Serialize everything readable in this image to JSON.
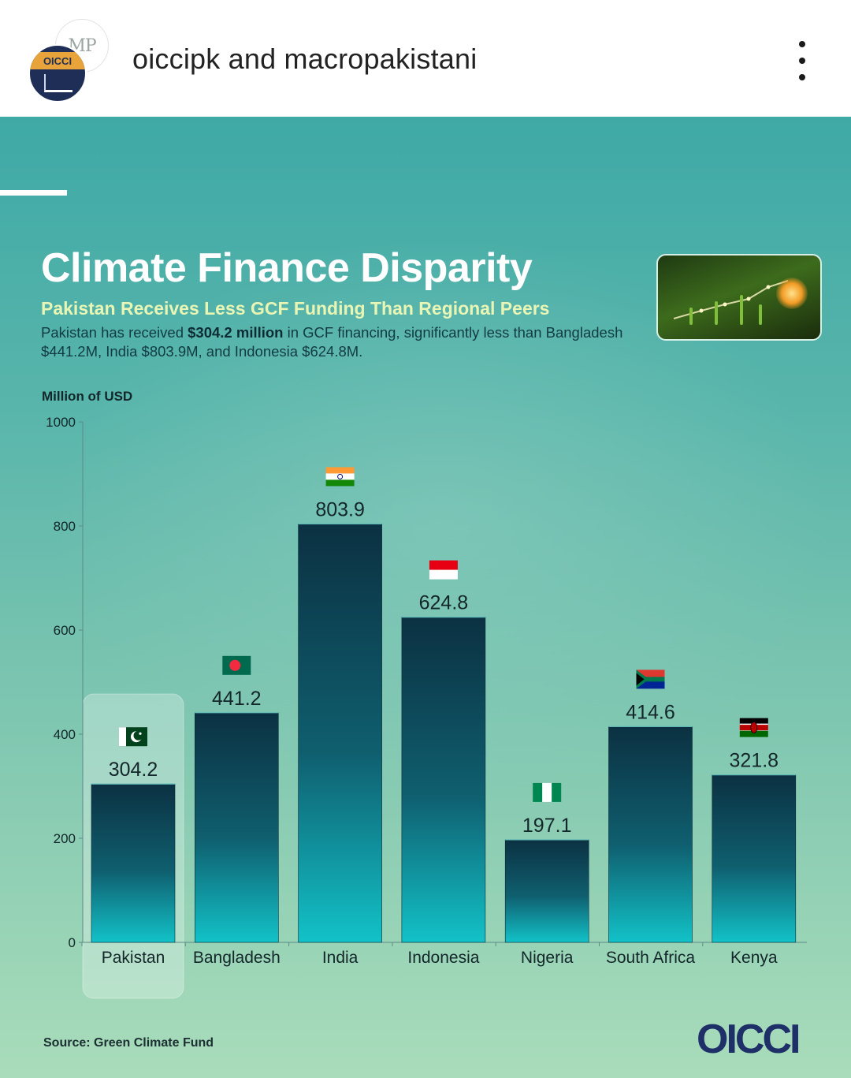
{
  "post": {
    "accounts": "oiccipk and macropakistani",
    "avatar_back_text": "MP",
    "avatar_front_text": "OICCI",
    "menu_icon": "more-vertical-icon"
  },
  "infographic": {
    "title": "Climate Finance Disparity",
    "subtitle": "Pakistan Receives Less GCF Funding Than Regional Peers",
    "description_pre": "Pakistan has received ",
    "description_bold": "$304.2 million",
    "description_post": " in GCF financing, significantly less than Bangladesh $441.2M, India $803.9M,  and Indonesia $624.8M.",
    "source": "Source: Green Climate Fund",
    "logo": "OICCI",
    "photo_icons": [
      "lightbulb-icon",
      "sprout-icon",
      "trend-line-icon"
    ]
  },
  "chart_data": {
    "type": "bar",
    "ylabel": "Million of USD",
    "ylim": [
      0,
      1000
    ],
    "yticks": [
      0,
      200,
      400,
      600,
      800,
      1000
    ],
    "categories": [
      "Pakistan",
      "Bangladesh",
      "India",
      "Indonesia",
      "Nigeria",
      "South Africa",
      "Kenya"
    ],
    "values": [
      304.2,
      441.2,
      803.9,
      624.8,
      197.1,
      414.6,
      321.8
    ],
    "value_labels": [
      "304.2",
      "441.2",
      "803.9",
      "624.8",
      "197.1",
      "414.6",
      "321.8"
    ],
    "flags": [
      "pakistan-flag-icon",
      "bangladesh-flag-icon",
      "india-flag-icon",
      "indonesia-flag-icon",
      "nigeria-flag-icon",
      "south-africa-flag-icon",
      "kenya-flag-icon"
    ],
    "highlighted": "Pakistan",
    "grid": false,
    "colors": {
      "bar_top": "#0b3142",
      "bar_bottom": "#12c2c8",
      "axis": "#5b8a86",
      "label": "#13262a"
    }
  }
}
